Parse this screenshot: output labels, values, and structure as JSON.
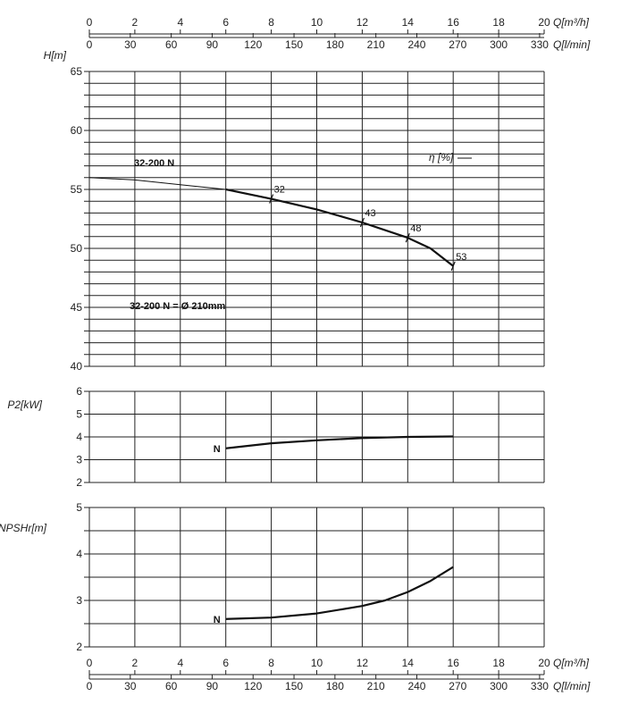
{
  "chart_data": {
    "type": "line",
    "axes": {
      "q_m3h": {
        "label": "Q[m³/h]",
        "ticks": [
          0,
          2,
          4,
          6,
          8,
          10,
          12,
          14,
          16,
          18,
          20
        ],
        "range": [
          0,
          20
        ]
      },
      "q_lmin": {
        "label": "Q[l/min]",
        "ticks": [
          0,
          30,
          60,
          90,
          120,
          150,
          180,
          210,
          240,
          270,
          300,
          330
        ],
        "range": [
          0,
          333.33
        ]
      }
    },
    "panels": [
      {
        "id": "head",
        "ylabel": "H[m]",
        "ylim": [
          40,
          65
        ],
        "yticks": [
          40,
          45,
          50,
          55,
          60,
          65
        ],
        "grid": true,
        "series": [
          {
            "name": "32-200 N",
            "x": [
              0,
              2,
              4,
              6,
              8,
              10,
              12,
              14,
              15,
              16
            ],
            "y": [
              56.0,
              55.8,
              55.4,
              55.0,
              54.2,
              53.3,
              52.2,
              50.9,
              50.0,
              48.5
            ]
          }
        ],
        "annotations": {
          "series_label": "32-200 N",
          "impeller_label": "32-200 N = Ø 210mm",
          "efficiency_label": "η [%]",
          "efficiency_marks": [
            {
              "text": "32",
              "x": 8,
              "y": 54.2
            },
            {
              "text": "43",
              "x": 12,
              "y": 52.2
            },
            {
              "text": "48",
              "x": 14,
              "y": 50.9
            },
            {
              "text": "53",
              "x": 16,
              "y": 48.5
            }
          ]
        }
      },
      {
        "id": "power",
        "ylabel": "P2[kW]",
        "ylim": [
          2,
          6
        ],
        "yticks": [
          2,
          3,
          4,
          5,
          6
        ],
        "grid": true,
        "series": [
          {
            "name": "N",
            "x": [
              6,
              8,
              10,
              12,
              14,
              16
            ],
            "y": [
              3.5,
              3.72,
              3.85,
              3.95,
              4.0,
              4.02
            ]
          }
        ]
      },
      {
        "id": "npsh",
        "ylabel": "NPSHr[m]",
        "ylim": [
          2,
          5
        ],
        "yticks": [
          2,
          3,
          4,
          5
        ],
        "grid": true,
        "series": [
          {
            "name": "N",
            "x": [
              6,
              8,
              10,
              12,
              13,
              14,
              15,
              16
            ],
            "y": [
              2.6,
              2.63,
              2.72,
              2.88,
              3.0,
              3.18,
              3.42,
              3.72
            ]
          }
        ]
      }
    ]
  }
}
